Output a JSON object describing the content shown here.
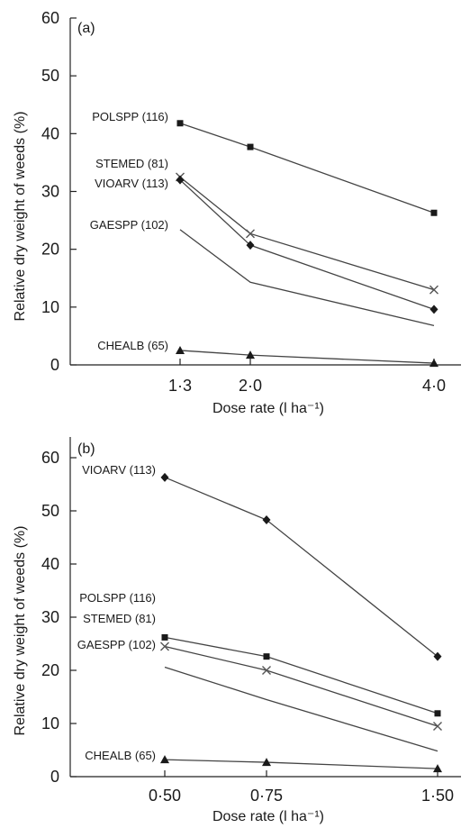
{
  "chart_data": [
    {
      "type": "line",
      "panel_label": "(a)",
      "xlabel": "Dose rate (l ha⁻¹)",
      "ylabel": "Relative dry weight of weeds (%)",
      "x": [
        1.3,
        2.0,
        4.0
      ],
      "x_tick_labels": [
        "1·3",
        "2·0",
        "4·0"
      ],
      "ylim": [
        0,
        60
      ],
      "y_ticks": [
        0,
        10,
        20,
        30,
        40,
        50,
        60
      ],
      "x_scale": "log",
      "grid": false,
      "series": [
        {
          "name": "POLSPP (116)",
          "marker": "square",
          "values": [
            41.8,
            37.7,
            26.3
          ]
        },
        {
          "name": "STEMED (81)",
          "marker": "cross",
          "values": [
            32.5,
            22.7,
            13.0
          ]
        },
        {
          "name": "VIOARV (113)",
          "marker": "diamond",
          "values": [
            32.0,
            20.7,
            9.6
          ]
        },
        {
          "name": "GAESPP (102)",
          "marker": "none",
          "values": [
            23.4,
            14.3,
            6.8
          ]
        },
        {
          "name": "CHEALB (65)",
          "marker": "triangle",
          "values": [
            2.5,
            1.7,
            0.3
          ]
        }
      ]
    },
    {
      "type": "line",
      "panel_label": "(b)",
      "xlabel": "Dose rate (l ha⁻¹)",
      "ylabel": "Relative dry weight of weeds (%)",
      "x": [
        0.5,
        0.75,
        1.5
      ],
      "x_tick_labels": [
        "0·50",
        "0·75",
        "1·50"
      ],
      "ylim": [
        0,
        60
      ],
      "y_ticks": [
        0,
        10,
        20,
        30,
        40,
        50,
        60
      ],
      "x_scale": "log",
      "grid": false,
      "series": [
        {
          "name": "VIOARV (113)",
          "marker": "diamond",
          "values": [
            56.3,
            48.3,
            22.6
          ]
        },
        {
          "name": "POLSPP (116)",
          "marker": "square",
          "values": [
            26.2,
            22.6,
            11.9
          ]
        },
        {
          "name": "STEMED (81)",
          "marker": "cross",
          "values": [
            24.5,
            20.0,
            9.5
          ]
        },
        {
          "name": "GAESPP (102)",
          "marker": "none",
          "values": [
            20.6,
            14.5,
            4.8
          ]
        },
        {
          "name": "CHEALB (65)",
          "marker": "triangle",
          "values": [
            3.2,
            2.7,
            1.5
          ]
        }
      ]
    }
  ]
}
